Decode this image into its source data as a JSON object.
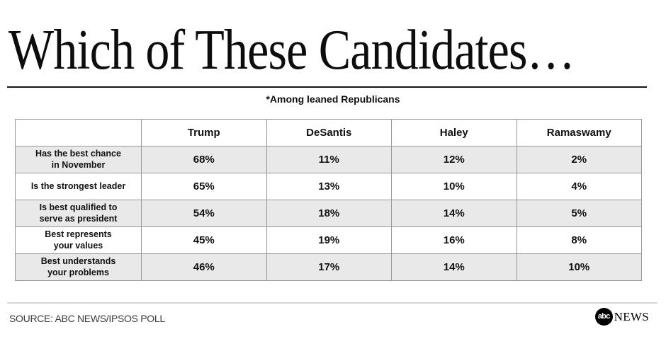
{
  "title": "Which of These Candidates…",
  "subtitle": "*Among leaned Republicans",
  "table": {
    "columns": [
      "",
      "Trump",
      "DeSantis",
      "Haley",
      "Ramaswamy"
    ],
    "rows": [
      {
        "label": "Has the best chance\nin November",
        "values": [
          "68%",
          "11%",
          "12%",
          "2%"
        ]
      },
      {
        "label": "Is the strongest leader",
        "values": [
          "65%",
          "13%",
          "10%",
          "4%"
        ]
      },
      {
        "label": "Is best qualified to\nserve as president",
        "values": [
          "54%",
          "18%",
          "14%",
          "5%"
        ]
      },
      {
        "label": "Best represents\nyour values",
        "values": [
          "45%",
          "19%",
          "16%",
          "8%"
        ]
      },
      {
        "label": "Best understands\nyour problems",
        "values": [
          "46%",
          "17%",
          "14%",
          "10%"
        ]
      }
    ]
  },
  "footer": {
    "source": "SOURCE: ABC NEWS/IPSOS POLL",
    "logo_abc": "abc",
    "logo_news": "NEWS"
  },
  "chart_data": {
    "type": "table",
    "title": "Which of These Candidates…",
    "subtitle": "*Among leaned Republicans",
    "columns": [
      "Trump",
      "DeSantis",
      "Haley",
      "Ramaswamy"
    ],
    "row_labels": [
      "Has the best chance in November",
      "Is the strongest leader",
      "Is best qualified to serve as president",
      "Best represents your values",
      "Best understands your problems"
    ],
    "values_percent": [
      [
        68,
        11,
        12,
        2
      ],
      [
        65,
        13,
        10,
        4
      ],
      [
        54,
        18,
        14,
        5
      ],
      [
        45,
        19,
        16,
        8
      ],
      [
        46,
        17,
        14,
        10
      ]
    ],
    "source": "SOURCE: ABC NEWS/IPSOS POLL"
  },
  "colors": {
    "background": "#ffffff",
    "row_alt": "#e9e9e9",
    "table_border": "#979797",
    "title_rule": "#151515",
    "footer_rule": "#d6d6d6",
    "source_text": "#3d3d3d",
    "text": "#111111"
  }
}
